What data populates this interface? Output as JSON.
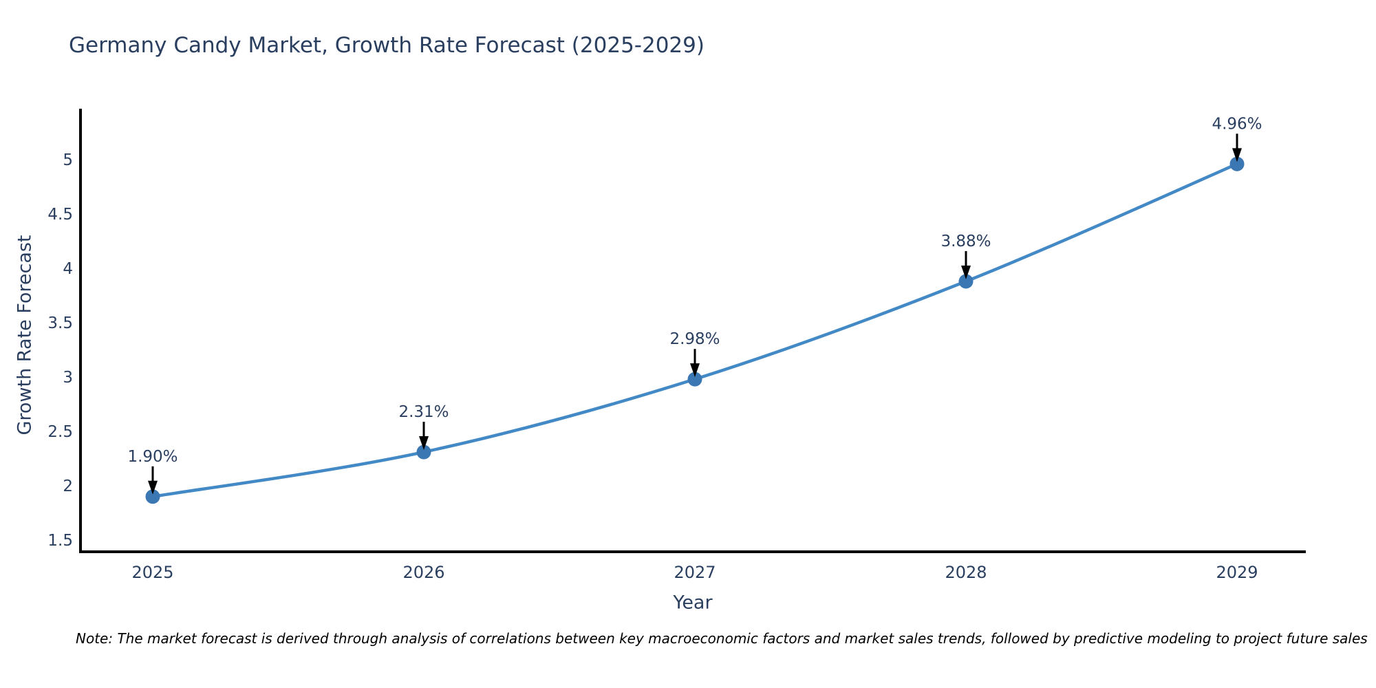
{
  "title": "Germany Candy Market, Growth Rate Forecast (2025-2029)",
  "note": "Note: The market forecast is derived through analysis of correlations between key macroeconomic factors and market sales trends, followed by predictive modeling to project future sales",
  "colors": {
    "title_text": "#2a3f5f",
    "tick_text": "#2a3f5f",
    "annotation_text": "#2a3f5f",
    "line": "#4389c5",
    "marker": "#3b77b2",
    "axis_line": "#000000",
    "arrow": "#000000",
    "background": "#ffffff",
    "note_text": "#000000"
  },
  "chart_data": {
    "type": "line",
    "title": "Germany Candy Market, Growth Rate Forecast (2025-2029)",
    "xlabel": "Year",
    "ylabel": "Growth Rate Forecast",
    "categories": [
      "2025",
      "2026",
      "2027",
      "2028",
      "2029"
    ],
    "values": [
      1.9,
      2.31,
      2.98,
      3.88,
      4.96
    ],
    "point_labels": [
      "1.90%",
      "2.31%",
      "2.98%",
      "3.88%",
      "4.96%"
    ],
    "yticks": [
      1.5,
      2,
      2.5,
      3,
      3.5,
      4,
      4.5,
      5
    ],
    "ylim": [
      1.37,
      5.47
    ],
    "line_shape": "spline",
    "markers": true,
    "annotations_with_arrows": true,
    "grid": false,
    "legend_position": "none"
  }
}
